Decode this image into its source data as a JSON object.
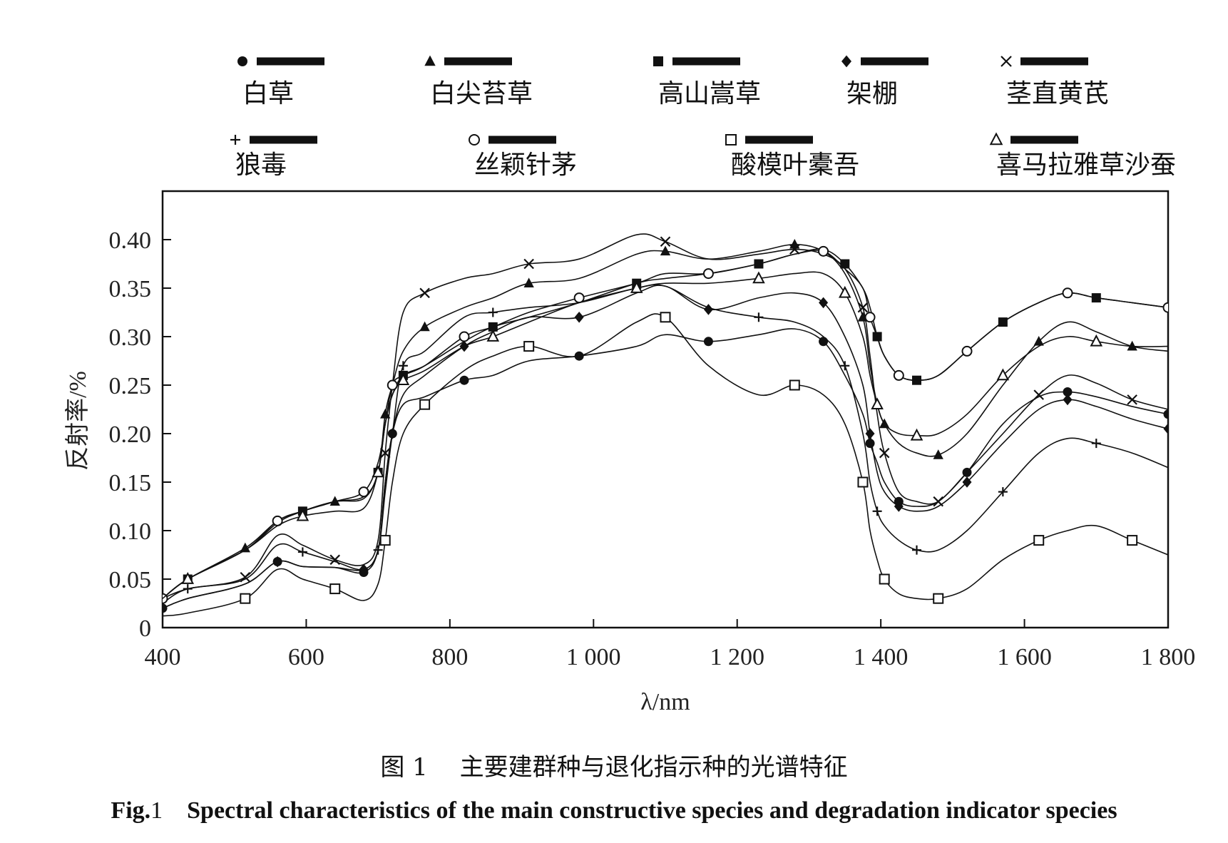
{
  "chart_data": {
    "type": "line",
    "xlabel": "λ/nm",
    "ylabel": "反射率/%",
    "xlim": [
      400,
      1800
    ],
    "ylim": [
      0,
      0.45
    ],
    "xticks": [
      400,
      600,
      800,
      1000,
      1200,
      1400,
      1600,
      1800
    ],
    "xtick_labels": [
      "400",
      "600",
      "800",
      "1 000",
      "1 200",
      "1 400",
      "1 600",
      "1 800"
    ],
    "yticks": [
      0,
      0.05,
      0.1,
      0.15,
      0.2,
      0.25,
      0.3,
      0.35,
      0.4
    ],
    "ytick_labels": [
      "0",
      "0.05",
      "0.10",
      "0.15",
      "0.20",
      "0.25",
      "0.30",
      "0.35",
      "0.40"
    ],
    "grid": false,
    "legend_position": "top",
    "x": [
      400,
      435,
      515,
      560,
      595,
      640,
      680,
      700,
      710,
      720,
      735,
      765,
      820,
      860,
      910,
      980,
      1060,
      1100,
      1160,
      1230,
      1280,
      1320,
      1350,
      1375,
      1385,
      1395,
      1405,
      1425,
      1450,
      1480,
      1520,
      1570,
      1620,
      1660,
      1700,
      1750,
      1800
    ],
    "series": [
      {
        "name": "白草",
        "marker": "circle",
        "values": [
          0.02,
          0.03,
          0.045,
          0.068,
          0.063,
          0.062,
          0.057,
          0.08,
          0.15,
          0.2,
          0.23,
          0.238,
          0.255,
          0.26,
          0.275,
          0.28,
          0.29,
          0.302,
          0.295,
          0.302,
          0.308,
          0.295,
          0.26,
          0.22,
          0.19,
          0.17,
          0.15,
          0.13,
          0.125,
          0.13,
          0.16,
          0.21,
          0.238,
          0.243,
          0.238,
          0.228,
          0.22
        ]
      },
      {
        "name": "白尖苔草",
        "marker": "triangle",
        "values": [
          0.03,
          0.05,
          0.082,
          0.11,
          0.12,
          0.13,
          0.135,
          0.16,
          0.22,
          0.25,
          0.285,
          0.31,
          0.33,
          0.34,
          0.355,
          0.36,
          0.385,
          0.388,
          0.38,
          0.388,
          0.395,
          0.388,
          0.365,
          0.32,
          0.27,
          0.23,
          0.21,
          0.19,
          0.18,
          0.178,
          0.2,
          0.25,
          0.295,
          0.315,
          0.305,
          0.29,
          0.285
        ]
      },
      {
        "name": "高山嵩草",
        "marker": "square",
        "values": [
          0.03,
          0.05,
          0.08,
          0.108,
          0.12,
          0.13,
          0.133,
          0.16,
          0.21,
          0.24,
          0.26,
          0.27,
          0.295,
          0.31,
          0.32,
          0.335,
          0.355,
          0.36,
          0.365,
          0.375,
          0.385,
          0.39,
          0.375,
          0.35,
          0.33,
          0.3,
          0.28,
          0.26,
          0.255,
          0.26,
          0.285,
          0.315,
          0.335,
          0.345,
          0.34,
          0.335,
          0.33
        ]
      },
      {
        "name": "架棚",
        "marker": "diamond",
        "values": [
          0.02,
          0.03,
          0.045,
          0.068,
          0.063,
          0.062,
          0.06,
          0.08,
          0.15,
          0.2,
          0.24,
          0.26,
          0.29,
          0.305,
          0.32,
          0.32,
          0.345,
          0.352,
          0.328,
          0.34,
          0.345,
          0.335,
          0.3,
          0.25,
          0.2,
          0.16,
          0.14,
          0.125,
          0.12,
          0.125,
          0.15,
          0.19,
          0.225,
          0.235,
          0.228,
          0.215,
          0.205
        ]
      },
      {
        "name": "茎直黄芪",
        "marker": "cross",
        "values": [
          0.03,
          0.04,
          0.052,
          0.095,
          0.085,
          0.07,
          0.065,
          0.09,
          0.18,
          0.25,
          0.325,
          0.345,
          0.36,
          0.365,
          0.375,
          0.38,
          0.405,
          0.398,
          0.38,
          0.385,
          0.39,
          0.385,
          0.37,
          0.33,
          0.28,
          0.22,
          0.18,
          0.14,
          0.13,
          0.13,
          0.16,
          0.2,
          0.24,
          0.26,
          0.252,
          0.235,
          0.225
        ]
      },
      {
        "name": "狼毒",
        "marker": "plus",
        "values": [
          0.025,
          0.04,
          0.05,
          0.085,
          0.078,
          0.068,
          0.06,
          0.08,
          0.14,
          0.2,
          0.27,
          0.285,
          0.32,
          0.325,
          0.33,
          0.335,
          0.35,
          0.352,
          0.33,
          0.32,
          0.315,
          0.3,
          0.27,
          0.2,
          0.15,
          0.12,
          0.105,
          0.09,
          0.08,
          0.08,
          0.1,
          0.14,
          0.18,
          0.195,
          0.19,
          0.18,
          0.165
        ]
      },
      {
        "name": "丝颖针茅",
        "marker": "circle-open",
        "values": [
          0.03,
          0.05,
          0.08,
          0.11,
          0.12,
          0.13,
          0.14,
          0.17,
          0.21,
          0.25,
          0.26,
          0.27,
          0.3,
          0.31,
          0.325,
          0.34,
          0.355,
          0.365,
          0.365,
          0.375,
          0.385,
          0.388,
          0.37,
          0.35,
          0.32,
          0.3,
          0.28,
          0.26,
          0.255,
          0.26,
          0.285,
          0.315,
          0.335,
          0.345,
          0.34,
          0.335,
          0.33
        ]
      },
      {
        "name": "酸模叶橐吾",
        "marker": "square-open",
        "values": [
          0.012,
          0.015,
          0.03,
          0.06,
          0.05,
          0.04,
          0.028,
          0.045,
          0.09,
          0.15,
          0.2,
          0.23,
          0.265,
          0.28,
          0.29,
          0.28,
          0.315,
          0.32,
          0.27,
          0.24,
          0.25,
          0.24,
          0.21,
          0.15,
          0.1,
          0.07,
          0.05,
          0.035,
          0.03,
          0.03,
          0.04,
          0.07,
          0.09,
          0.1,
          0.105,
          0.09,
          0.075
        ]
      },
      {
        "name": "喜马拉雅草沙蚕",
        "marker": "triangle-open",
        "values": [
          0.03,
          0.05,
          0.08,
          0.105,
          0.115,
          0.12,
          0.123,
          0.16,
          0.21,
          0.24,
          0.255,
          0.265,
          0.29,
          0.3,
          0.315,
          0.335,
          0.35,
          0.355,
          0.355,
          0.36,
          0.365,
          0.365,
          0.345,
          0.3,
          0.26,
          0.23,
          0.21,
          0.2,
          0.198,
          0.2,
          0.22,
          0.26,
          0.29,
          0.3,
          0.295,
          0.29,
          0.29
        ]
      }
    ]
  },
  "caption": {
    "cn": "图 1　 主要建群种与退化指示种的光谱特征",
    "en_prefix": "Fig.",
    "en_num": "1",
    "en_text": "Spectral characteristics of the main constructive species and degradation indicator species"
  }
}
